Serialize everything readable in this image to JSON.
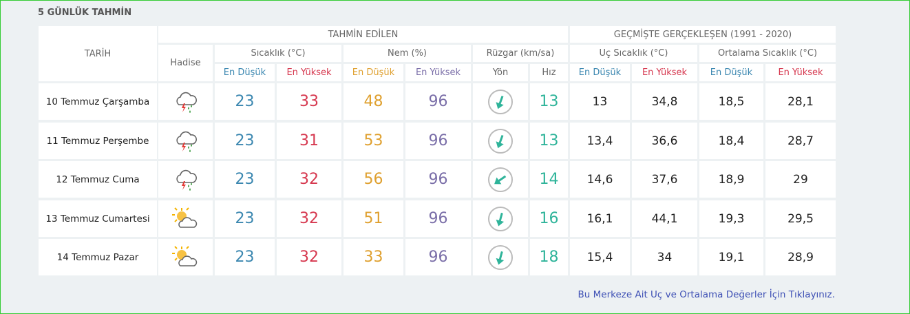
{
  "header": {
    "title": "5 GÜNLÜK TAHMİN"
  },
  "table": {
    "columns": {
      "date": "TARİH",
      "forecast": "TAHMİN EDİLEN",
      "history": "GEÇMİŞTE GERÇEKLEŞEN (1991 - 2020)",
      "event": "Hadise",
      "temp": "Sıcaklık (°C)",
      "humidity": "Nem (%)",
      "wind": "Rüzgar (km/sa)",
      "extreme": "Uç Sıcaklık (°C)",
      "average": "Ortalama Sıcaklık (°C)"
    },
    "subheaders": [
      "En Düşük",
      "En Yüksek",
      "En Düşük",
      "En Yüksek",
      "Yön",
      "Hız",
      "En Düşük",
      "En Yüksek",
      "En Düşük",
      "En Yüksek"
    ],
    "rows": [
      [
        "10 Temmuz Çarşamba",
        23,
        33,
        48,
        96,
        13,
        13,
        "34,8",
        "18,5",
        "28,1"
      ],
      [
        "11 Temmuz Perşembe",
        23,
        31,
        53,
        96,
        13,
        "13,4",
        "36,6",
        "18,4",
        "28,7"
      ],
      [
        "12 Temmuz Cuma",
        23,
        32,
        56,
        96,
        14,
        "14,6",
        "37,6",
        "18,9",
        29
      ],
      [
        "13 Temmuz Cumartesi",
        23,
        32,
        51,
        96,
        16,
        "16,1",
        "44,1",
        "19,3",
        "29,5"
      ],
      [
        "14 Temmuz Pazar",
        23,
        32,
        33,
        96,
        18,
        "15,4",
        34,
        "19,1",
        "28,9"
      ]
    ]
  },
  "footer": {
    "link": "Bu Merkeze Ait Uç ve Ortalama Değerler İçin Tıklayınız."
  }
}
